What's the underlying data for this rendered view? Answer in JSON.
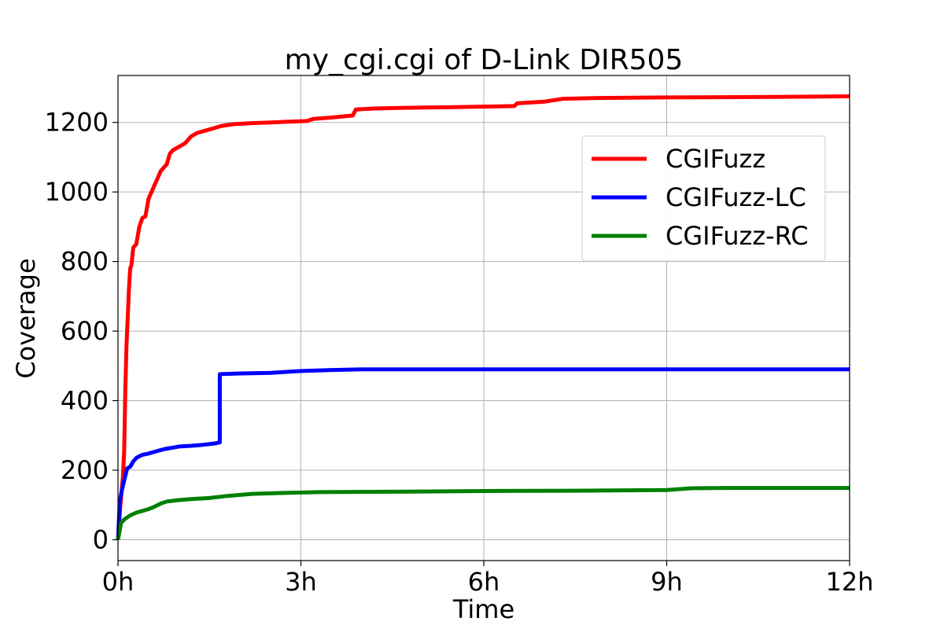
{
  "chart_data": {
    "type": "line",
    "title": "my_cgi.cgi of D-Link DIR505",
    "xlabel": "Time",
    "ylabel": "Coverage",
    "xlim": [
      0,
      12
    ],
    "ylim": [
      -60,
      1335
    ],
    "x_ticks": [
      {
        "value": 0,
        "label": "0h"
      },
      {
        "value": 3,
        "label": "3h"
      },
      {
        "value": 6,
        "label": "6h"
      },
      {
        "value": 9,
        "label": "9h"
      },
      {
        "value": 12,
        "label": "12h"
      }
    ],
    "y_ticks": [
      {
        "value": 0,
        "label": "0"
      },
      {
        "value": 200,
        "label": "200"
      },
      {
        "value": 400,
        "label": "400"
      },
      {
        "value": 600,
        "label": "600"
      },
      {
        "value": 800,
        "label": "800"
      },
      {
        "value": 1000,
        "label": "1000"
      },
      {
        "value": 1200,
        "label": "1200"
      }
    ],
    "grid": true,
    "legend_position": "upper-right",
    "series": [
      {
        "name": "CGIFuzz",
        "color": "#ff0000",
        "x": [
          0,
          0.04,
          0.08,
          0.1,
          0.12,
          0.14,
          0.16,
          0.18,
          0.2,
          0.22,
          0.25,
          0.3,
          0.35,
          0.4,
          0.45,
          0.5,
          0.55,
          0.6,
          0.65,
          0.7,
          0.75,
          0.8,
          0.85,
          0.9,
          1.0,
          1.1,
          1.2,
          1.3,
          1.5,
          1.7,
          1.9,
          2.2,
          2.5,
          2.8,
          3.1,
          3.2,
          3.5,
          3.85,
          3.9,
          4.2,
          4.7,
          5.5,
          6.5,
          6.55,
          7.0,
          7.3,
          7.8,
          9.0,
          10.5,
          12.0
        ],
        "y": [
          0,
          100,
          180,
          250,
          430,
          560,
          640,
          720,
          780,
          790,
          840,
          850,
          900,
          925,
          930,
          980,
          1000,
          1020,
          1040,
          1060,
          1070,
          1080,
          1110,
          1120,
          1130,
          1140,
          1160,
          1170,
          1180,
          1190,
          1195,
          1198,
          1200,
          1202,
          1204,
          1210,
          1214,
          1220,
          1237,
          1240,
          1242,
          1244,
          1247,
          1255,
          1260,
          1268,
          1270,
          1272,
          1273,
          1275
        ]
      },
      {
        "name": "CGIFuzz-LC",
        "color": "#0000ff",
        "x": [
          0,
          0.03,
          0.06,
          0.1,
          0.15,
          0.2,
          0.25,
          0.3,
          0.35,
          0.4,
          0.5,
          0.6,
          0.7,
          0.8,
          0.9,
          1.0,
          1.2,
          1.4,
          1.6,
          1.67,
          1.67,
          2.0,
          2.5,
          3.0,
          3.5,
          4.0,
          6.0,
          12.0
        ],
        "y": [
          0,
          110,
          140,
          170,
          205,
          210,
          225,
          235,
          240,
          244,
          248,
          253,
          258,
          262,
          265,
          268,
          270,
          273,
          277,
          280,
          476,
          478,
          480,
          485,
          488,
          490,
          490,
          490
        ]
      },
      {
        "name": "CGIFuzz-RC",
        "color": "#008000",
        "x": [
          0,
          0.05,
          0.1,
          0.2,
          0.3,
          0.4,
          0.5,
          0.6,
          0.7,
          0.8,
          1.0,
          1.2,
          1.5,
          1.8,
          2.2,
          2.8,
          3.3,
          4.5,
          6.0,
          7.5,
          9.0,
          9.4,
          10.0,
          12.0
        ],
        "y": [
          0,
          48,
          58,
          70,
          78,
          83,
          88,
          95,
          104,
          110,
          114,
          117,
          120,
          126,
          132,
          135,
          137,
          138,
          140,
          141,
          143,
          148,
          149,
          149
        ]
      }
    ]
  }
}
